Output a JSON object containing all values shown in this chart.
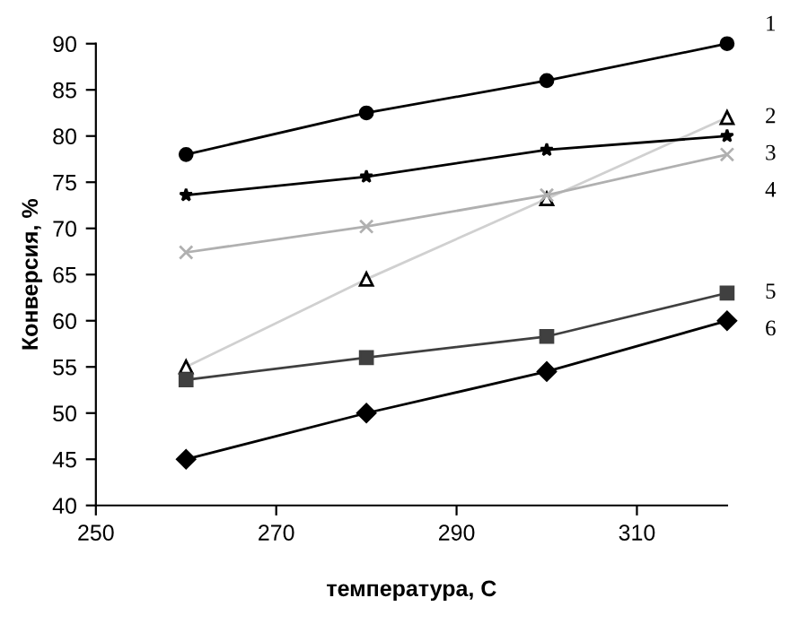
{
  "chart_data": {
    "type": "line",
    "xlabel": "температура, С",
    "ylabel": "Конверсия, %",
    "x": [
      260,
      280,
      300,
      320
    ],
    "series": [
      {
        "name": "1",
        "color": "#000000",
        "marker": "circle",
        "values": [
          78,
          82.5,
          86,
          90
        ]
      },
      {
        "name": "2",
        "color": "#d0d0d0",
        "marker": "triangle",
        "values": [
          55,
          64.5,
          73.2,
          82
        ]
      },
      {
        "name": "3",
        "color": "#000000",
        "marker": "star",
        "values": [
          73.6,
          75.6,
          78.5,
          80
        ]
      },
      {
        "name": "4",
        "color": "#b0b0b0",
        "marker": "cross",
        "values": [
          67.4,
          70.2,
          73.6,
          78
        ]
      },
      {
        "name": "5",
        "color": "#404040",
        "marker": "square",
        "values": [
          53.6,
          56,
          58.3,
          63
        ]
      },
      {
        "name": "6",
        "color": "#000000",
        "marker": "diamond",
        "values": [
          45,
          50,
          54.5,
          60
        ]
      }
    ],
    "xlim": [
      250,
      320
    ],
    "xticks": [
      250,
      270,
      290,
      310
    ],
    "ylim": [
      40,
      90
    ],
    "yticks": [
      40,
      45,
      50,
      55,
      60,
      65,
      70,
      75,
      80,
      85,
      90
    ],
    "grid": false,
    "legend": false,
    "line_style": "solid"
  }
}
